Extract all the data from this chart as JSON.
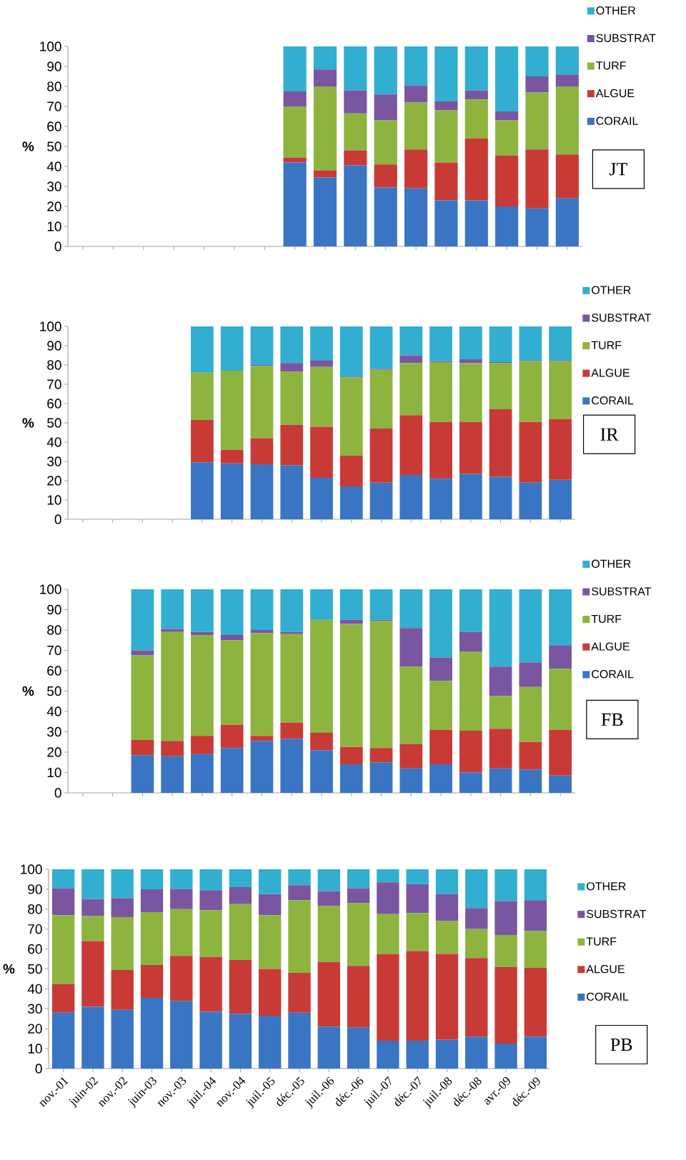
{
  "chart_data": [
    {
      "type": "bar",
      "stacked": true,
      "annotations": [
        "JT"
      ],
      "ylabel": "%",
      "legend": "right",
      "ylim": [
        0,
        100
      ],
      "yticks": [
        0,
        10,
        20,
        30,
        40,
        50,
        60,
        70,
        80,
        90,
        100
      ],
      "categories": [
        null,
        null,
        null,
        null,
        null,
        null,
        null,
        null,
        null,
        null,
        null,
        null,
        null,
        null,
        null,
        null,
        null
      ],
      "series": [
        {
          "name": "CORAIL",
          "color": "#3a75c4",
          "values": [
            null,
            null,
            null,
            null,
            null,
            null,
            null,
            42,
            34.5,
            40.5,
            29.5,
            29,
            23,
            23,
            20,
            19,
            24
          ]
        },
        {
          "name": "ALGUE",
          "color": "#c83a36",
          "values": [
            null,
            null,
            null,
            null,
            null,
            null,
            null,
            2.5,
            3.5,
            7.5,
            11.5,
            19.5,
            19,
            31,
            25.5,
            29.5,
            22
          ]
        },
        {
          "name": "TURF",
          "color": "#8db43e",
          "values": [
            null,
            null,
            null,
            null,
            null,
            null,
            null,
            25.5,
            42,
            18.5,
            22,
            23.5,
            26,
            19.5,
            17.5,
            28.5,
            34
          ]
        },
        {
          "name": "SUBSTRAT",
          "color": "#7a55a0",
          "values": [
            null,
            null,
            null,
            null,
            null,
            null,
            null,
            7.5,
            8.5,
            11.5,
            13,
            8.5,
            4.5,
            4.5,
            4.5,
            8,
            6
          ]
        },
        {
          "name": "OTHER",
          "color": "#31aed0",
          "values": [
            null,
            null,
            null,
            null,
            null,
            null,
            null,
            22.5,
            11.5,
            22,
            24,
            19.5,
            27.5,
            22,
            32.5,
            15,
            14
          ]
        }
      ]
    },
    {
      "type": "bar",
      "stacked": true,
      "annotations": [
        "IR"
      ],
      "ylabel": "%",
      "legend": "right",
      "ylim": [
        0,
        100
      ],
      "yticks": [
        0,
        10,
        20,
        30,
        40,
        50,
        60,
        70,
        80,
        90,
        100
      ],
      "categories": [
        null,
        null,
        null,
        null,
        null,
        null,
        null,
        null,
        null,
        null,
        null,
        null,
        null,
        null,
        null,
        null,
        null
      ],
      "series": [
        {
          "name": "CORAIL",
          "color": "#3a75c4",
          "values": [
            null,
            null,
            null,
            null,
            29.5,
            29,
            28.5,
            28,
            21.5,
            17,
            19,
            23,
            21,
            23.5,
            22,
            19,
            20.5
          ]
        },
        {
          "name": "ALGUE",
          "color": "#c83a36",
          "values": [
            null,
            null,
            null,
            null,
            22,
            7,
            13.5,
            21,
            26.5,
            16,
            28,
            31,
            29.5,
            27,
            35,
            31.5,
            31.5
          ]
        },
        {
          "name": "TURF",
          "color": "#8db43e",
          "values": [
            null,
            null,
            null,
            null,
            24.5,
            41,
            37.5,
            27.5,
            31,
            40.5,
            30.5,
            27,
            31,
            30.5,
            24,
            31.5,
            30
          ]
        },
        {
          "name": "SUBSTRAT",
          "color": "#7a55a0",
          "values": [
            null,
            null,
            null,
            null,
            0,
            0,
            0.5,
            4.5,
            3.5,
            0.5,
            0.5,
            4,
            0.5,
            2,
            0.5,
            0.5,
            0.5
          ]
        },
        {
          "name": "OTHER",
          "color": "#31aed0",
          "values": [
            null,
            null,
            null,
            null,
            24,
            23,
            20,
            19,
            17.5,
            26,
            22,
            15,
            18,
            17,
            18.5,
            17.5,
            17.5
          ]
        }
      ]
    },
    {
      "type": "bar",
      "stacked": true,
      "annotations": [
        "FB"
      ],
      "ylabel": "%",
      "legend": "right",
      "ylim": [
        0,
        100
      ],
      "yticks": [
        0,
        10,
        20,
        30,
        40,
        50,
        60,
        70,
        80,
        90,
        100
      ],
      "categories": [
        null,
        null,
        null,
        null,
        null,
        null,
        null,
        null,
        null,
        null,
        null,
        null,
        null,
        null,
        null,
        null,
        null
      ],
      "series": [
        {
          "name": "CORAIL",
          "color": "#3a75c4",
          "values": [
            null,
            null,
            18.5,
            18,
            19,
            22,
            25.5,
            26.5,
            21,
            14,
            15,
            12,
            14,
            10,
            12,
            11.5,
            8.5
          ]
        },
        {
          "name": "ALGUE",
          "color": "#c83a36",
          "values": [
            null,
            null,
            7.5,
            7.5,
            9,
            11.5,
            2.5,
            8,
            8.5,
            8.5,
            7,
            12,
            17,
            20.5,
            19.5,
            13.5,
            22.5
          ]
        },
        {
          "name": "TURF",
          "color": "#8db43e",
          "values": [
            null,
            null,
            41.5,
            53.5,
            49.5,
            41.5,
            50.5,
            43.5,
            55.5,
            60.5,
            62.5,
            38,
            24,
            39,
            16,
            27,
            30
          ]
        },
        {
          "name": "SUBSTRAT",
          "color": "#7a55a0",
          "values": [
            null,
            null,
            2.5,
            1.5,
            1.5,
            2.5,
            1.5,
            1,
            0,
            2,
            0.5,
            19,
            11.5,
            9.5,
            14.5,
            12,
            11.5
          ]
        },
        {
          "name": "OTHER",
          "color": "#31aed0",
          "values": [
            null,
            null,
            30,
            19.5,
            21,
            22.5,
            20,
            21,
            15,
            15,
            15,
            19,
            33.5,
            21,
            38,
            36,
            27.5
          ]
        }
      ]
    },
    {
      "type": "bar",
      "stacked": true,
      "annotations": [
        "PB"
      ],
      "ylabel": "%",
      "legend": "right",
      "ylim": [
        0,
        100
      ],
      "yticks": [
        0,
        10,
        20,
        30,
        40,
        50,
        60,
        70,
        80,
        90,
        100
      ],
      "categories": [
        "nov.-01",
        "juin-02",
        "nov.-02",
        "juin-03",
        "nov.-03",
        "juil.-04",
        "nov.-04",
        "juil.-05",
        "déc.-05",
        "juil.-06",
        "déc.-06",
        "juil.-07",
        "déc.-07",
        "juil.-08",
        "déc.-08",
        "avr.-09",
        "déc.-09"
      ],
      "series": [
        {
          "name": "CORAIL",
          "color": "#3a75c4",
          "values": [
            28,
            31,
            29.5,
            35.5,
            34,
            28.5,
            27.5,
            26.5,
            28,
            21,
            20.5,
            14,
            14,
            14.5,
            16,
            12.5,
            16
          ]
        },
        {
          "name": "ALGUE",
          "color": "#c83a36",
          "values": [
            14.5,
            33,
            20,
            16.5,
            22.5,
            27.5,
            27,
            23.5,
            20,
            32.5,
            31,
            43.5,
            45,
            43,
            39.5,
            38.5,
            34.5
          ]
        },
        {
          "name": "TURF",
          "color": "#8db43e",
          "values": [
            34.5,
            12.5,
            26.5,
            26.5,
            23.5,
            23.5,
            28,
            27,
            36.5,
            28,
            31.5,
            20,
            19,
            16.5,
            14.5,
            16,
            18.5
          ]
        },
        {
          "name": "SUBSTRAT",
          "color": "#7a55a0",
          "values": [
            13.5,
            8.5,
            9.5,
            11.5,
            10,
            10,
            8.5,
            10.5,
            7.5,
            7.5,
            7.5,
            16,
            14.5,
            13.5,
            10.5,
            17,
            15.5
          ]
        },
        {
          "name": "OTHER",
          "color": "#31aed0",
          "values": [
            9.5,
            15,
            14.5,
            10,
            10,
            10.5,
            9,
            12.5,
            8,
            11,
            9.5,
            6.5,
            7.5,
            12.5,
            19.5,
            16,
            15.5
          ]
        }
      ]
    }
  ]
}
